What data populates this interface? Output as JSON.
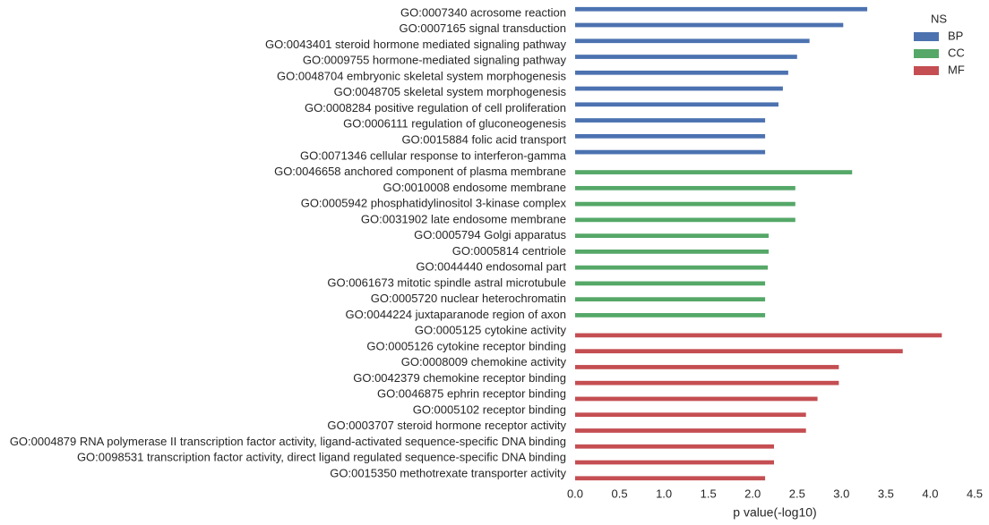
{
  "chart_data": {
    "type": "barh",
    "xlabel": "p value(-log10)",
    "legend_title": "NS",
    "legend": "upper right",
    "categories": [
      "GO:0007340 acrosome reaction",
      "GO:0007165 signal transduction",
      "GO:0043401 steroid hormone mediated signaling pathway",
      "GO:0009755 hormone-mediated signaling pathway",
      "GO:0048704 embryonic skeletal system morphogenesis",
      "GO:0048705 skeletal system morphogenesis",
      "GO:0008284 positive regulation of cell proliferation",
      "GO:0006111 regulation of gluconeogenesis",
      "GO:0015884 folic acid transport",
      "GO:0071346 cellular response to interferon-gamma",
      "GO:0046658 anchored component of plasma membrane",
      "GO:0010008 endosome membrane",
      "GO:0005942 phosphatidylinositol 3-kinase complex",
      "GO:0031902 late endosome membrane",
      "GO:0005794 Golgi apparatus",
      "GO:0005814 centriole",
      "GO:0044440 endosomal part",
      "GO:0061673 mitotic spindle astral microtubule",
      "GO:0005720 nuclear heterochromatin",
      "GO:0044224 juxtaparanode region of axon",
      "GO:0005125 cytokine activity",
      "GO:0005126 cytokine receptor binding",
      "GO:0008009 chemokine activity",
      "GO:0042379 chemokine receptor binding",
      "GO:0046875 ephrin receptor binding",
      "GO:0005102 receptor binding",
      "GO:0003707 steroid hormone receptor activity",
      "GO:0004879 RNA polymerase II transcription factor activity, ligand-activated sequence-specific DNA binding",
      "GO:0098531 transcription factor activity, direct ligand regulated sequence-specific DNA binding",
      "GO:0015350 methotrexate transporter activity"
    ],
    "series": [
      {
        "name": "BP",
        "color": "#4c72b0",
        "values": [
          3.29,
          3.02,
          2.64,
          2.5,
          2.4,
          2.34,
          2.29,
          2.14,
          2.14,
          2.14,
          null,
          null,
          null,
          null,
          null,
          null,
          null,
          null,
          null,
          null,
          null,
          null,
          null,
          null,
          null,
          null,
          null,
          null,
          null,
          null
        ]
      },
      {
        "name": "CC",
        "color": "#55a868",
        "values": [
          null,
          null,
          null,
          null,
          null,
          null,
          null,
          null,
          null,
          null,
          3.12,
          2.48,
          2.48,
          2.48,
          2.18,
          2.18,
          2.17,
          2.14,
          2.14,
          2.14,
          null,
          null,
          null,
          null,
          null,
          null,
          null,
          null,
          null,
          null
        ]
      },
      {
        "name": "MF",
        "color": "#c44e52",
        "values": [
          null,
          null,
          null,
          null,
          null,
          null,
          null,
          null,
          null,
          null,
          null,
          null,
          null,
          null,
          null,
          null,
          null,
          null,
          null,
          null,
          4.13,
          3.69,
          2.97,
          2.97,
          2.73,
          2.6,
          2.6,
          2.24,
          2.24,
          2.14
        ]
      }
    ],
    "xlim": [
      0,
      4.5
    ],
    "xticks": [
      {
        "value": 0,
        "label": "0.0"
      },
      0.5,
      {
        "value": 1,
        "label": "1.0"
      },
      1.5,
      {
        "value": 2,
        "label": "2.0"
      },
      2.5,
      {
        "value": 3,
        "label": "3.0"
      },
      3.5,
      {
        "value": 4,
        "label": "4.0"
      },
      4.5
    ]
  }
}
